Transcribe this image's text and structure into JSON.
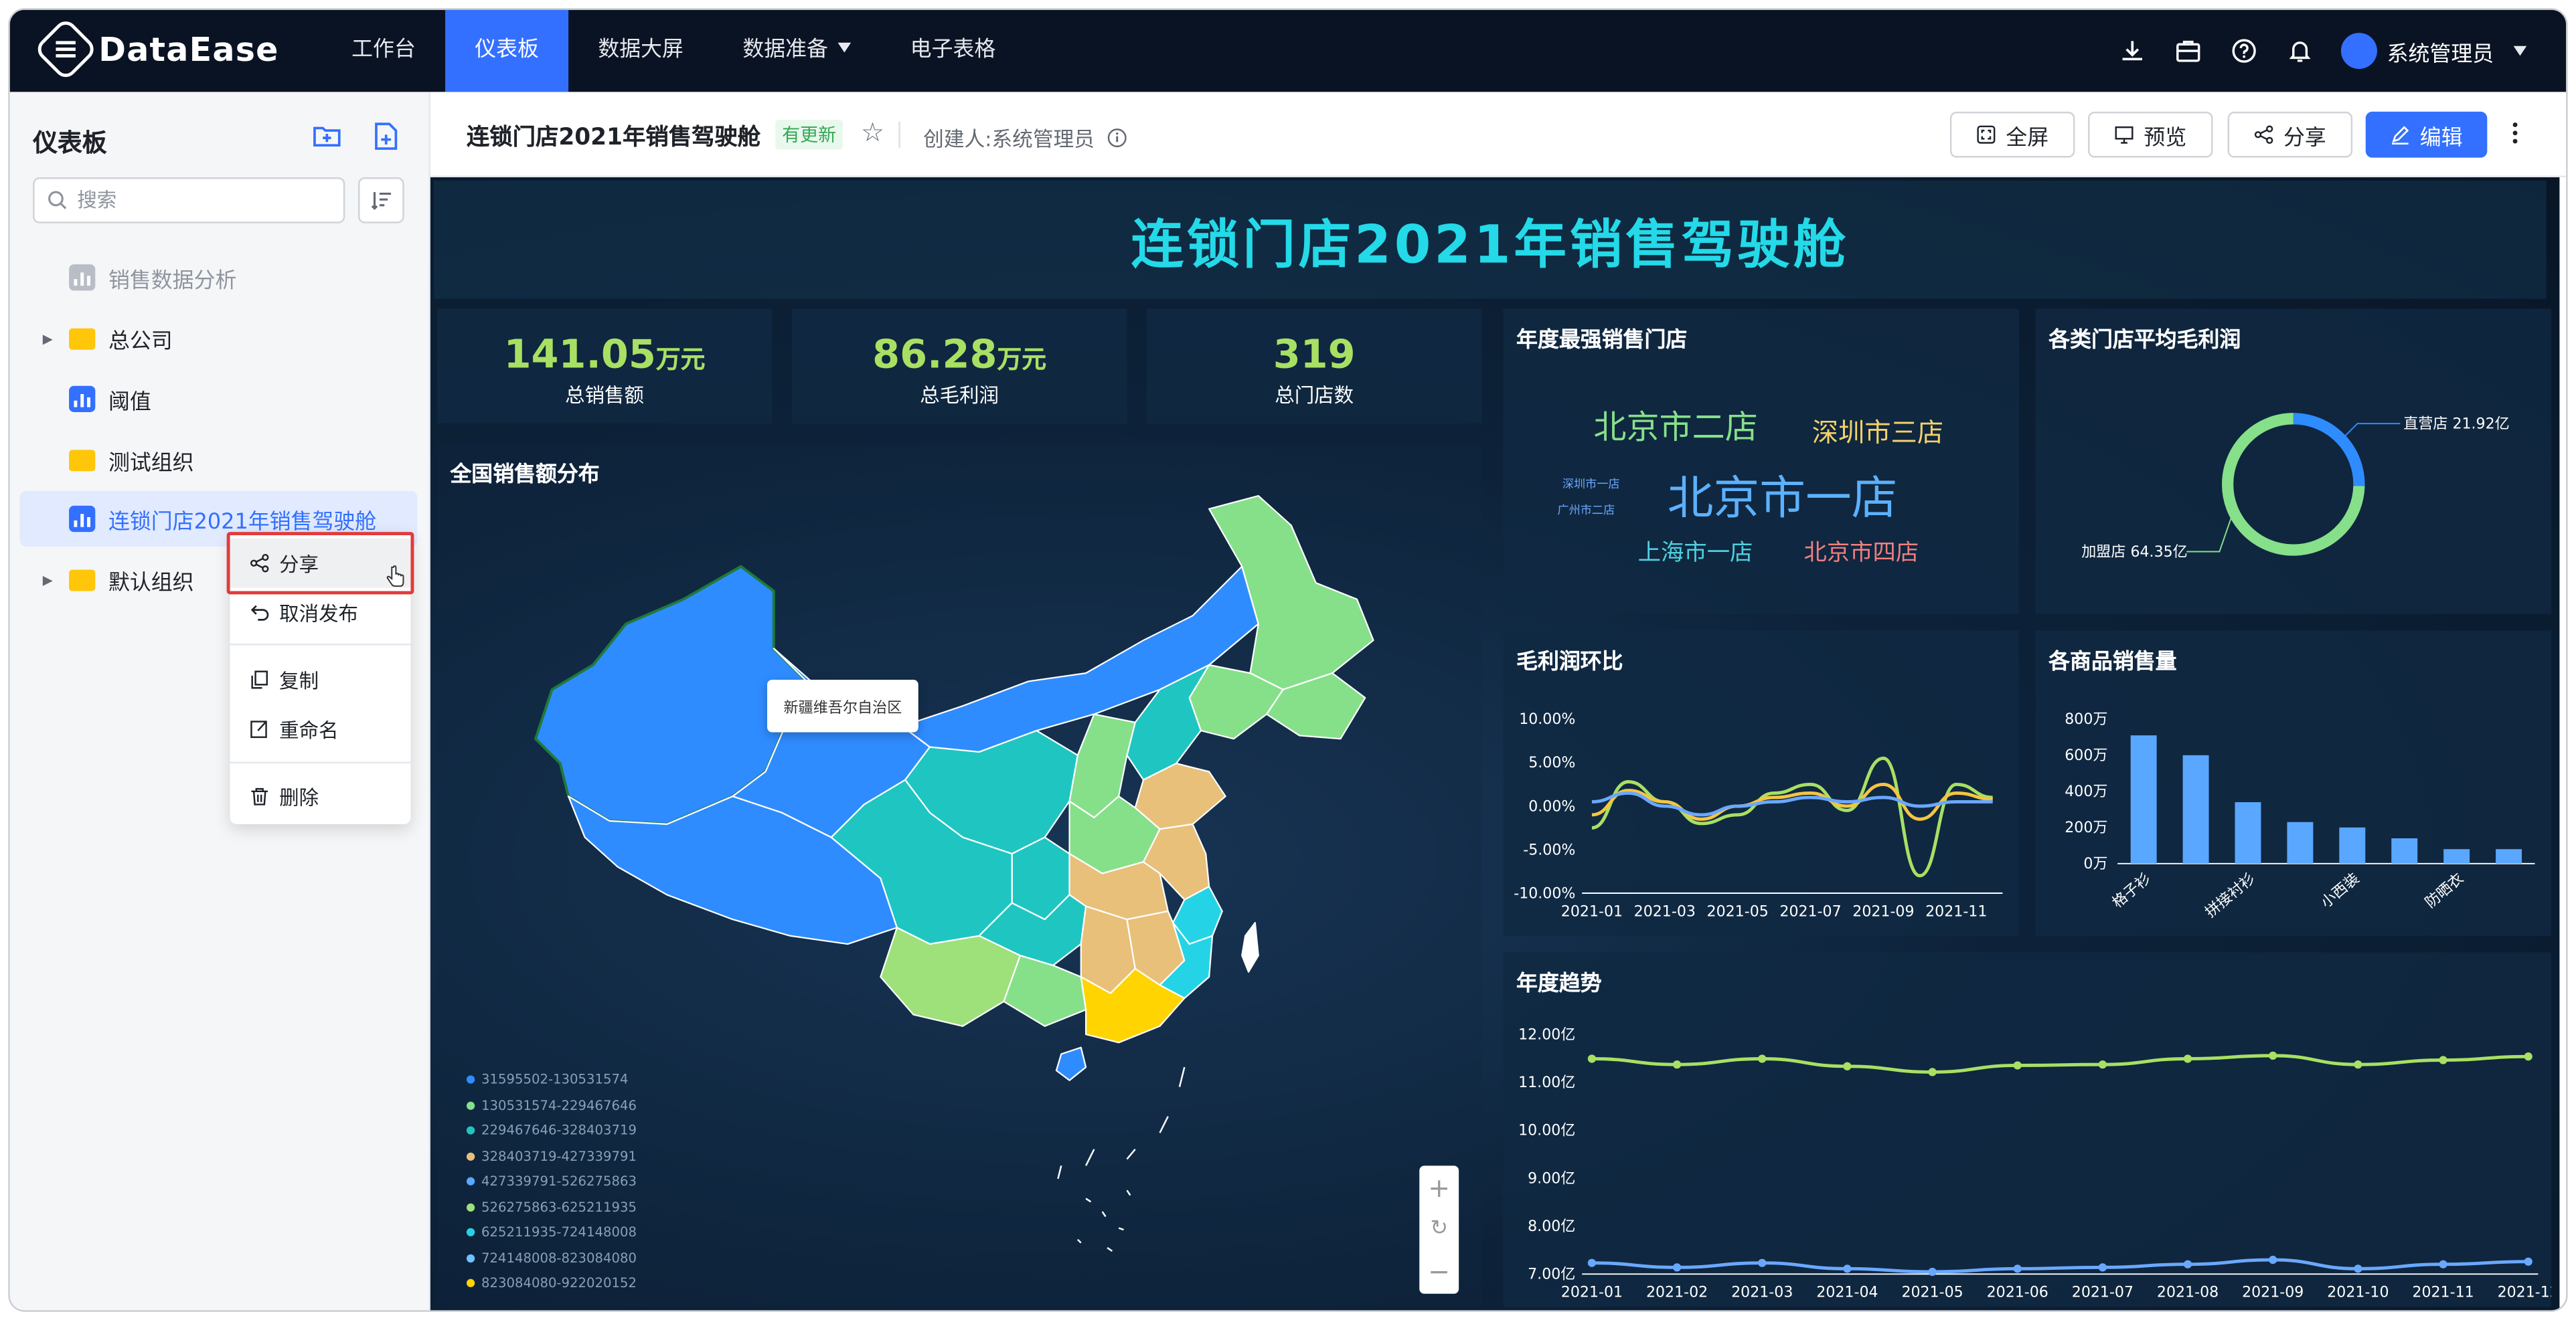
{
  "topbar": {
    "app_name": "DataEase",
    "nav": [
      {
        "label": "工作台"
      },
      {
        "label": "仪表板",
        "active": true
      },
      {
        "label": "数据大屏"
      },
      {
        "label": "数据准备",
        "dropdown": true
      },
      {
        "label": "电子表格"
      }
    ],
    "icons": [
      "download-icon",
      "briefcase-icon",
      "help-icon",
      "bell-icon"
    ],
    "user_name": "系统管理员"
  },
  "sidebar": {
    "title": "仪表板",
    "search_placeholder": "搜索",
    "items": [
      {
        "label": "销售数据分析",
        "type": "dashboard",
        "disabled": true
      },
      {
        "label": "总公司",
        "type": "folder",
        "expandable": true
      },
      {
        "label": "阈值",
        "type": "dashboard"
      },
      {
        "label": "测试组织",
        "type": "folder"
      },
      {
        "label": "连锁门店2021年销售驾驶舱",
        "type": "dashboard",
        "selected": true
      },
      {
        "label": "默认组织",
        "type": "folder",
        "expandable": true
      }
    ]
  },
  "context_menu": {
    "items": [
      {
        "label": "分享",
        "icon": "share-icon"
      },
      {
        "label": "取消发布",
        "icon": "undo-icon"
      },
      {
        "label": "复制",
        "icon": "copy-icon"
      },
      {
        "label": "重命名",
        "icon": "edit-icon"
      },
      {
        "label": "删除",
        "icon": "trash-icon"
      }
    ]
  },
  "header": {
    "title": "连锁门店2021年销售驾驶舱",
    "badge": "有更新",
    "creator": "创建人:系统管理员",
    "buttons": {
      "fullscreen": "全屏",
      "preview": "预览",
      "share": "分享",
      "edit": "编辑"
    }
  },
  "dashboard": {
    "title": "连锁门店2021年销售驾驶舱",
    "kpis": [
      {
        "value": "141.05",
        "unit": "万元",
        "label": "总销售额"
      },
      {
        "value": "86.28",
        "unit": "万元",
        "label": "总毛利润"
      },
      {
        "value": "319",
        "unit": "",
        "label": "总门店数"
      }
    ],
    "map": {
      "title": "全国销售额分布",
      "tooltip": "新疆维吾尔自治区",
      "legend": [
        {
          "label": "31595502-130531574",
          "color": "#2f8cff"
        },
        {
          "label": "130531574-229467646",
          "color": "#86e08a"
        },
        {
          "label": "229467646-328403719",
          "color": "#1fc6c1"
        },
        {
          "label": "328403719-427339791",
          "color": "#e8c07a"
        },
        {
          "label": "427339791-526275863",
          "color": "#5aa7ff"
        },
        {
          "label": "526275863-625211935",
          "color": "#9ee07a"
        },
        {
          "label": "625211935-724148008",
          "color": "#24d4e6"
        },
        {
          "label": "724148008-823084080",
          "color": "#6ec2ff"
        },
        {
          "label": "823084080-922020152",
          "color": "#ffd400"
        }
      ]
    },
    "wordcloud": {
      "title": "年度最强销售门店",
      "words": [
        {
          "text": "北京市二店",
          "color": "#86e08a"
        },
        {
          "text": "深圳市三店",
          "color": "#f4d16a"
        },
        {
          "text": "深圳市一店",
          "color": "#6aa8ff"
        },
        {
          "text": "北京市一店",
          "color": "#5cb1ff"
        },
        {
          "text": "广州市二店",
          "color": "#6aa8ff"
        },
        {
          "text": "上海市一店",
          "color": "#4fd0e0"
        },
        {
          "text": "北京市四店",
          "color": "#f08080"
        }
      ]
    },
    "donut_title": "各类门店平均毛利润",
    "line_title": "毛利润环比",
    "bar_title": "各商品销售量",
    "trend_title": "年度趋势"
  },
  "chart_data": [
    {
      "type": "pie",
      "title": "各类门店平均毛利润",
      "labels": [
        "直营店",
        "加盟店"
      ],
      "values": [
        21.92,
        64.35
      ],
      "value_labels": [
        "直营店 21.92亿",
        "加盟店 64.35亿"
      ],
      "colors": [
        "#2f8cff",
        "#86e08a"
      ]
    },
    {
      "type": "line",
      "title": "毛利润环比",
      "y_ticks": [
        "10.00%",
        "5.00%",
        "0.00%",
        "-5.00%",
        "-10.00%"
      ],
      "ylim": [
        -10,
        10
      ],
      "x_labels": [
        "2021-01",
        "2021-03",
        "2021-05",
        "2021-07",
        "2021-09",
        "2021-11"
      ],
      "series": [
        {
          "color": "#a8e063",
          "values": [
            -2.5,
            2.8,
            0.5,
            -2.0,
            -1.0,
            1.5,
            2.5,
            -0.5,
            5.5,
            -8.0,
            2.5,
            1.0
          ]
        },
        {
          "color": "#f4c542",
          "values": [
            -1.0,
            1.8,
            0.5,
            -1.5,
            0.0,
            1.0,
            1.5,
            0.0,
            2.5,
            -1.5,
            1.5,
            0.8
          ]
        },
        {
          "color": "#6aa8ff",
          "values": [
            0.5,
            1.5,
            0.0,
            -1.0,
            0.0,
            0.5,
            1.0,
            0.5,
            1.0,
            0.0,
            0.5,
            0.5
          ]
        }
      ]
    },
    {
      "type": "bar",
      "title": "各商品销售量",
      "y_ticks": [
        "800万",
        "600万",
        "400万",
        "200万",
        "0万"
      ],
      "ylim": [
        0,
        800
      ],
      "categories": [
        "格子衫",
        "",
        "拼接衬衫",
        "",
        "小西装",
        "",
        "防晒衣",
        ""
      ],
      "values": [
        710,
        600,
        340,
        230,
        200,
        140,
        80,
        80
      ],
      "color": "#5aa7ff"
    },
    {
      "type": "line",
      "title": "年度趋势",
      "y_ticks": [
        "12.00亿",
        "11.00亿",
        "10.00亿",
        "9.00亿",
        "8.00亿",
        "7.00亿"
      ],
      "ylim": [
        7,
        12.4
      ],
      "x_labels": [
        "2021-01",
        "2021-02",
        "2021-03",
        "2021-04",
        "2021-05",
        "2021-06",
        "2021-07",
        "2021-08",
        "2021-09",
        "2021-10",
        "2021-11",
        "2021-12"
      ],
      "series": [
        {
          "color": "#a8e063",
          "values": [
            11.85,
            11.72,
            11.85,
            11.68,
            11.55,
            11.7,
            11.72,
            11.85,
            11.92,
            11.72,
            11.82,
            11.9
          ]
        },
        {
          "color": "#6aa8ff",
          "values": [
            7.25,
            7.15,
            7.25,
            7.12,
            7.05,
            7.12,
            7.15,
            7.22,
            7.32,
            7.12,
            7.22,
            7.28
          ]
        }
      ]
    }
  ]
}
